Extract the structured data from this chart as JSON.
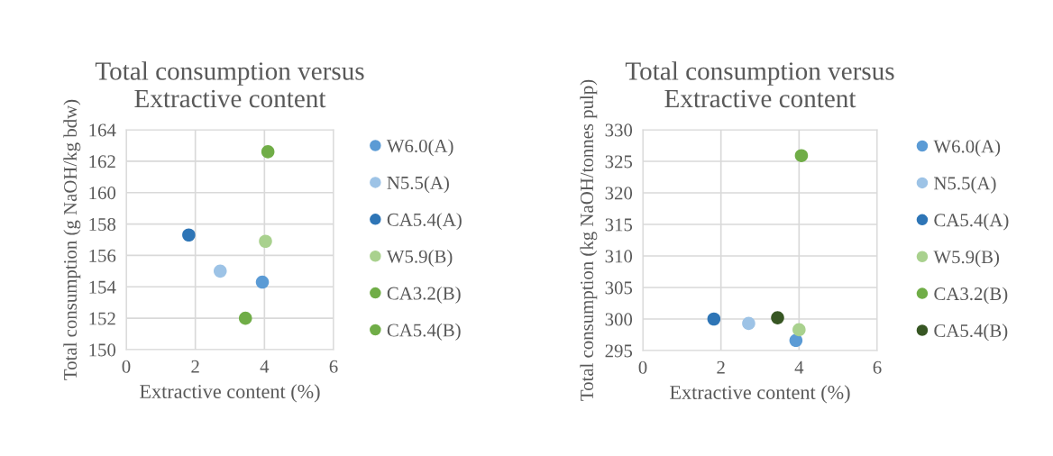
{
  "chart_data": [
    {
      "type": "scatter",
      "title": "Total consumption versus\nExtractive content",
      "xlabel": "Extractive content (%)",
      "ylabel": "Total consumption (g NaOH/kg bdw)",
      "xlim": [
        0,
        6
      ],
      "xticks": [
        0,
        2,
        4,
        6
      ],
      "ylim": [
        150,
        164
      ],
      "yticks": [
        150,
        152,
        154,
        156,
        158,
        160,
        162,
        164
      ],
      "grid": true,
      "legend": "right",
      "marker": "circle",
      "series": [
        {
          "name": "W6.0(A)",
          "color": "#5b9bd5",
          "x": [
            3.94
          ],
          "values": [
            154.3
          ]
        },
        {
          "name": "N5.5(A)",
          "color": "#9dc3e6",
          "x": [
            2.72
          ],
          "values": [
            155.0
          ]
        },
        {
          "name": "CA5.4(A)",
          "color": "#2e75b6",
          "x": [
            1.81
          ],
          "values": [
            157.3
          ]
        },
        {
          "name": "W5.9(B)",
          "color": "#a9d18e",
          "x": [
            4.03
          ],
          "values": [
            156.9
          ]
        },
        {
          "name": "CA3.2(B)",
          "color": "#70ad47",
          "x": [
            4.1
          ],
          "values": [
            162.6
          ]
        },
        {
          "name": "CA5.4(B)",
          "color": "#70ad47",
          "x": [
            3.45
          ],
          "values": [
            152.0
          ]
        }
      ]
    },
    {
      "type": "scatter",
      "title": "Total consumption versus\nExtractive content",
      "xlabel": "Extractive content (%)",
      "ylabel": "Total consumption (kg NaOH/tonnes pulp)",
      "xlim": [
        0,
        6
      ],
      "xticks": [
        0,
        2,
        4,
        6
      ],
      "ylim": [
        295,
        330
      ],
      "yticks": [
        295,
        300,
        305,
        310,
        315,
        320,
        325,
        330
      ],
      "grid": true,
      "legend": "right",
      "marker": "circle",
      "series": [
        {
          "name": "W6.0(A)",
          "color": "#5b9bd5",
          "x": [
            3.92
          ],
          "values": [
            296.6
          ]
        },
        {
          "name": "N5.5(A)",
          "color": "#9dc3e6",
          "x": [
            2.71
          ],
          "values": [
            299.3
          ]
        },
        {
          "name": "CA5.4(A)",
          "color": "#2e75b6",
          "x": [
            1.82
          ],
          "values": [
            300.0
          ]
        },
        {
          "name": "W5.9(B)",
          "color": "#a9d18e",
          "x": [
            4.0
          ],
          "values": [
            298.3
          ]
        },
        {
          "name": "CA3.2(B)",
          "color": "#70ad47",
          "x": [
            4.06
          ],
          "values": [
            325.9
          ]
        },
        {
          "name": "CA5.4(B)",
          "color": "#375623",
          "x": [
            3.45
          ],
          "values": [
            300.2
          ]
        }
      ]
    }
  ]
}
